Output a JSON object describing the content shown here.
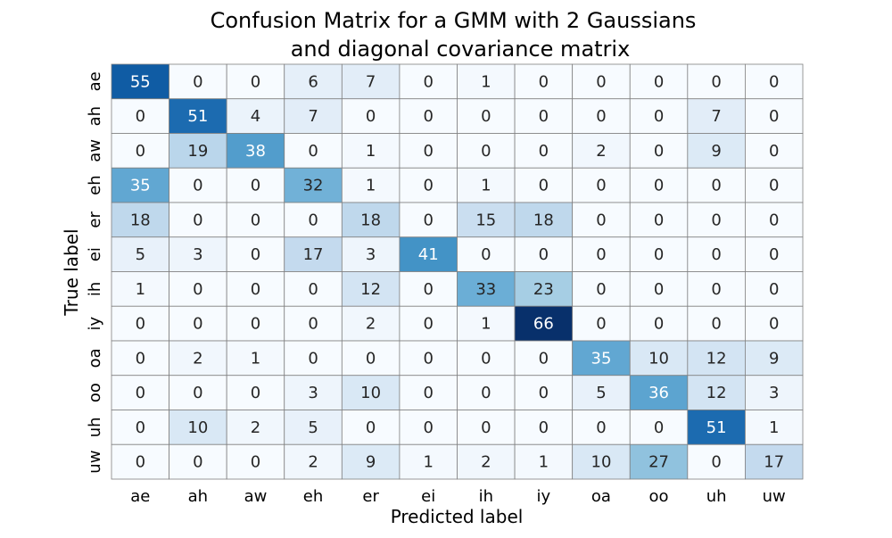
{
  "chart_data": {
    "type": "heatmap",
    "title_lines": [
      "Confusion Matrix for a GMM with 2 Gaussians",
      "and diagonal covariance matrix"
    ],
    "xlabel": "Predicted label",
    "ylabel": "True label",
    "x_categories": [
      "ae",
      "ah",
      "aw",
      "eh",
      "er",
      "ei",
      "ih",
      "iy",
      "oa",
      "oo",
      "uh",
      "uw"
    ],
    "y_categories": [
      "ae",
      "ah",
      "aw",
      "eh",
      "er",
      "ei",
      "ih",
      "iy",
      "oa",
      "oo",
      "uh",
      "uw"
    ],
    "values": [
      [
        55,
        0,
        0,
        6,
        7,
        0,
        1,
        0,
        0,
        0,
        0,
        0
      ],
      [
        0,
        51,
        4,
        7,
        0,
        0,
        0,
        0,
        0,
        0,
        7,
        0
      ],
      [
        0,
        19,
        38,
        0,
        1,
        0,
        0,
        0,
        2,
        0,
        9,
        0
      ],
      [
        35,
        0,
        0,
        32,
        1,
        0,
        1,
        0,
        0,
        0,
        0,
        0
      ],
      [
        18,
        0,
        0,
        0,
        18,
        0,
        15,
        18,
        0,
        0,
        0,
        0
      ],
      [
        5,
        3,
        0,
        17,
        3,
        41,
        0,
        0,
        0,
        0,
        0,
        0
      ],
      [
        1,
        0,
        0,
        0,
        12,
        0,
        33,
        23,
        0,
        0,
        0,
        0
      ],
      [
        0,
        0,
        0,
        0,
        2,
        0,
        1,
        66,
        0,
        0,
        0,
        0
      ],
      [
        0,
        2,
        1,
        0,
        0,
        0,
        0,
        0,
        35,
        10,
        12,
        9
      ],
      [
        0,
        0,
        0,
        3,
        10,
        0,
        0,
        0,
        5,
        36,
        12,
        3
      ],
      [
        0,
        10,
        2,
        5,
        0,
        0,
        0,
        0,
        0,
        0,
        51,
        1
      ],
      [
        0,
        0,
        0,
        2,
        9,
        1,
        2,
        1,
        10,
        27,
        0,
        17
      ]
    ],
    "colormap": "Blues",
    "vmin": 0,
    "vmax": 66,
    "colorbar": false,
    "cell_border_color": "#808080"
  }
}
